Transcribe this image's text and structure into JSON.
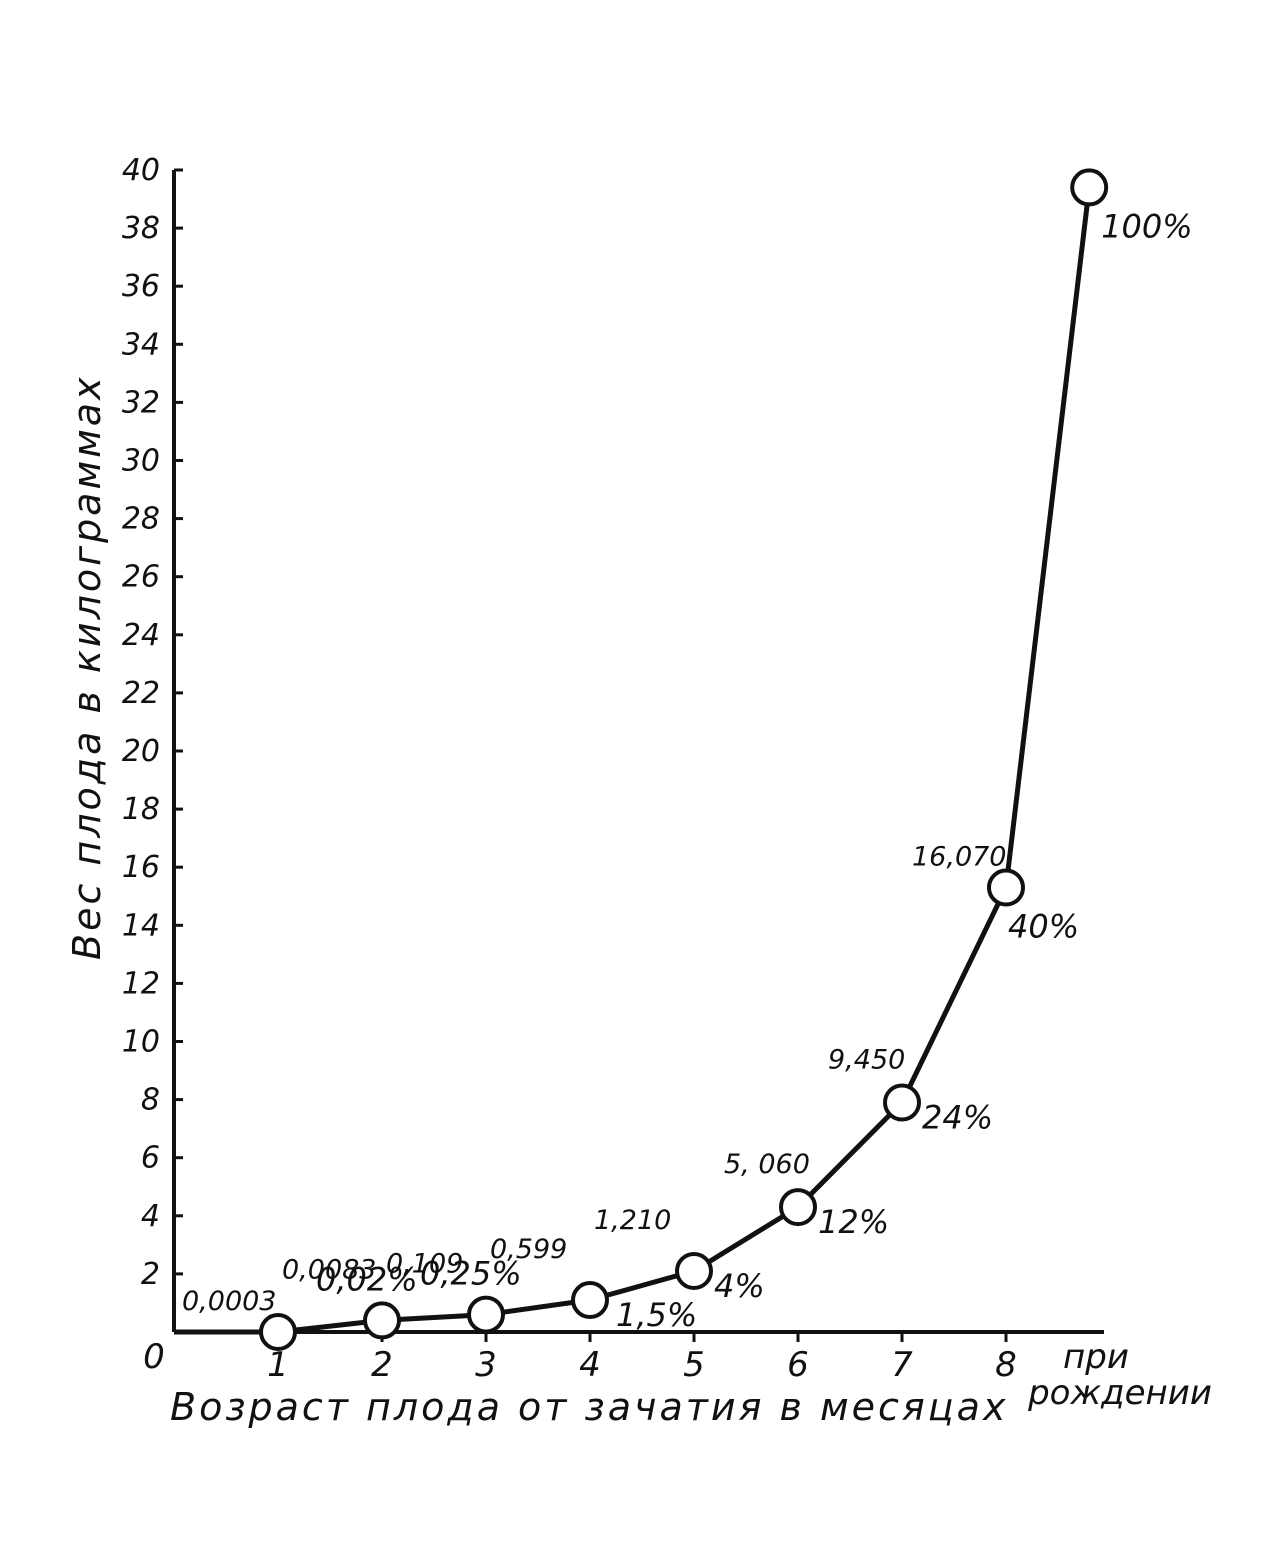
{
  "chart_data": {
    "type": "line",
    "xlabel": "Возраст плода от зачатия в месяцах",
    "ylabel": "Вес плода в килограммах",
    "x_categories": [
      "0",
      "1",
      "2",
      "3",
      "4",
      "5",
      "6",
      "7",
      "8"
    ],
    "x_end_label_line1": "при",
    "x_end_label_line2": "рождении",
    "y_ticks": [
      "2",
      "4",
      "6",
      "8",
      "10",
      "12",
      "14",
      "16",
      "18",
      "20",
      "22",
      "24",
      "26",
      "28",
      "30",
      "32",
      "34",
      "36",
      "38",
      "40"
    ],
    "ylim": [
      0,
      40
    ],
    "series": [
      {
        "points": [
          {
            "x": 1,
            "y": 0,
            "value_label": "0,0003",
            "percent_label": ""
          },
          {
            "x": 2,
            "y": 0.4,
            "value_label": "0,0083",
            "percent_label": "0,02%"
          },
          {
            "x": 3,
            "y": 0.6,
            "value_label": "0,109",
            "percent_label": "0,25%"
          },
          {
            "x": 4,
            "y": 1.1,
            "value_label": "0,599",
            "percent_label": "1,5%"
          },
          {
            "x": 5,
            "y": 2.1,
            "value_label": "1,210",
            "percent_label": "4%"
          },
          {
            "x": 6,
            "y": 4.3,
            "value_label": "5, 060",
            "percent_label": "12%"
          },
          {
            "x": 7,
            "y": 7.9,
            "value_label": "9,450",
            "percent_label": "24%"
          },
          {
            "x": 8,
            "y": 15.3,
            "value_label": "16,070",
            "percent_label": "40%"
          },
          {
            "x": 8.8,
            "y": 39.4,
            "value_label": "",
            "percent_label": "100%"
          }
        ]
      }
    ],
    "grid": false,
    "legend": "none"
  }
}
